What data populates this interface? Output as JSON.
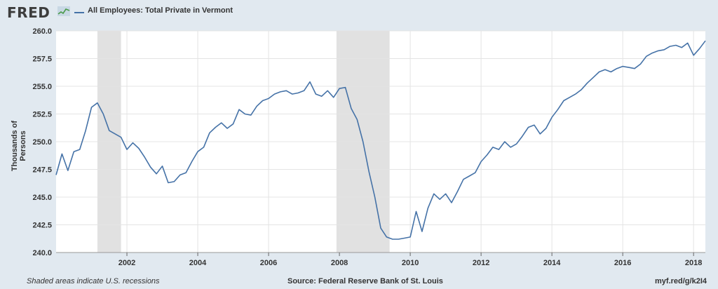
{
  "header": {
    "logo_text": "FRED",
    "logo_icon": "line-chart-icon",
    "legend_label": "All Employees: Total Private in Vermont",
    "series_color": "#4572a7"
  },
  "footer": {
    "recession_note": "Shaded areas indicate U.S. recessions",
    "source": "Source: Federal Reserve Bank of St. Louis",
    "short_url": "myf.red/g/k2I4"
  },
  "chart_data": {
    "type": "line",
    "title": "",
    "xlabel": "",
    "ylabel": "Thousands of Persons",
    "ylim": [
      240.0,
      260.0
    ],
    "xlim": [
      "2000-01",
      "2018-05"
    ],
    "y_ticks": [
      "240.0",
      "242.5",
      "245.0",
      "247.5",
      "250.0",
      "252.5",
      "255.0",
      "257.5",
      "260.0"
    ],
    "x_ticks": [
      "2002",
      "2004",
      "2006",
      "2008",
      "2010",
      "2012",
      "2014",
      "2016",
      "2018"
    ],
    "grid": true,
    "recessions": [
      [
        "2001-03",
        "2001-11"
      ],
      [
        "2007-12",
        "2009-06"
      ]
    ],
    "recession_color": "#e1e1e1",
    "series": [
      {
        "name": "All Employees: Total Private in Vermont",
        "color": "#4572a7",
        "x": [
          "2000-01",
          "2000-03",
          "2000-05",
          "2000-07",
          "2000-09",
          "2000-11",
          "2001-01",
          "2001-03",
          "2001-05",
          "2001-07",
          "2001-09",
          "2001-11",
          "2002-01",
          "2002-03",
          "2002-05",
          "2002-07",
          "2002-09",
          "2002-11",
          "2003-01",
          "2003-03",
          "2003-05",
          "2003-07",
          "2003-09",
          "2003-11",
          "2004-01",
          "2004-03",
          "2004-05",
          "2004-07",
          "2004-09",
          "2004-11",
          "2005-01",
          "2005-03",
          "2005-05",
          "2005-07",
          "2005-09",
          "2005-11",
          "2006-01",
          "2006-03",
          "2006-05",
          "2006-07",
          "2006-09",
          "2006-11",
          "2007-01",
          "2007-03",
          "2007-05",
          "2007-07",
          "2007-09",
          "2007-11",
          "2008-01",
          "2008-03",
          "2008-05",
          "2008-07",
          "2008-09",
          "2008-11",
          "2009-01",
          "2009-03",
          "2009-05",
          "2009-07",
          "2009-09",
          "2009-11",
          "2010-01",
          "2010-03",
          "2010-05",
          "2010-07",
          "2010-09",
          "2010-11",
          "2011-01",
          "2011-03",
          "2011-05",
          "2011-07",
          "2011-09",
          "2011-11",
          "2012-01",
          "2012-03",
          "2012-05",
          "2012-07",
          "2012-09",
          "2012-11",
          "2013-01",
          "2013-03",
          "2013-05",
          "2013-07",
          "2013-09",
          "2013-11",
          "2014-01",
          "2014-03",
          "2014-05",
          "2014-07",
          "2014-09",
          "2014-11",
          "2015-01",
          "2015-03",
          "2015-05",
          "2015-07",
          "2015-09",
          "2015-11",
          "2016-01",
          "2016-03",
          "2016-05",
          "2016-07",
          "2016-09",
          "2016-11",
          "2017-01",
          "2017-03",
          "2017-05",
          "2017-07",
          "2017-09",
          "2017-11",
          "2018-01",
          "2018-03",
          "2018-05"
        ],
        "values": [
          247.0,
          248.9,
          247.4,
          249.1,
          249.3,
          251.0,
          253.1,
          253.5,
          252.5,
          251.0,
          250.7,
          250.4,
          249.3,
          249.9,
          249.4,
          248.6,
          247.7,
          247.1,
          247.8,
          246.3,
          246.4,
          247.0,
          247.2,
          248.2,
          249.1,
          249.5,
          250.8,
          251.3,
          251.7,
          251.2,
          251.6,
          252.9,
          252.5,
          252.4,
          253.2,
          253.7,
          253.9,
          254.3,
          254.5,
          254.6,
          254.3,
          254.4,
          254.6,
          255.4,
          254.3,
          254.1,
          254.6,
          254.0,
          254.8,
          254.9,
          253.0,
          252.0,
          250.0,
          247.3,
          245.0,
          242.2,
          241.4,
          241.2,
          241.2,
          241.3,
          241.4,
          243.7,
          241.9,
          244.0,
          245.3,
          244.8,
          245.3,
          244.5,
          245.5,
          246.6,
          246.9,
          247.2,
          248.2,
          248.8,
          249.5,
          249.3,
          250.0,
          249.5,
          249.8,
          250.5,
          251.3,
          251.5,
          250.7,
          251.2,
          252.2,
          252.9,
          253.7,
          254.0,
          254.3,
          254.7,
          255.3,
          255.8,
          256.3,
          256.5,
          256.3,
          256.6,
          256.8,
          256.7,
          256.6,
          257.0,
          257.7,
          258.0,
          258.2,
          258.3,
          258.6,
          258.7,
          258.5,
          258.9,
          257.8,
          258.4,
          259.1
        ]
      }
    ]
  }
}
